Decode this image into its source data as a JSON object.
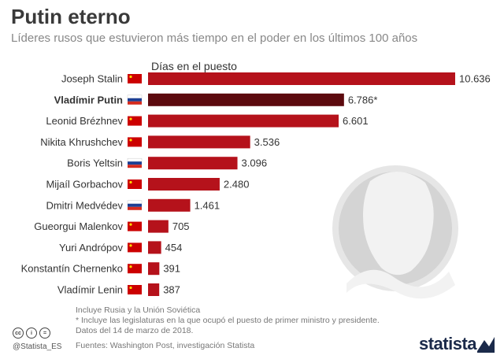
{
  "header": {
    "title": "Putin eterno",
    "subtitle": "Líderes rusos que estuvieron más tiempo en el poder en los últimos 100 años"
  },
  "chart_data": {
    "type": "bar",
    "orientation": "horizontal",
    "axis_title": "Días en el puesto",
    "categories": [
      "Joseph Stalin",
      "Vladímir Putin",
      "Leonid Brézhnev",
      "Nikita Khrushchev",
      "Boris Yeltsin",
      "Mijaíl Gorbachov",
      "Dmitri Medvédev",
      "Gueorgui Malenkov",
      "Yuri Andrópov",
      "Konstantín Chernenko",
      "Vladímir Lenin"
    ],
    "values": [
      10636,
      6786,
      6601,
      3536,
      3096,
      2480,
      1461,
      705,
      454,
      391,
      387
    ],
    "value_labels": [
      "10.636",
      "6.786*",
      "6.601",
      "3.536",
      "3.096",
      "2.480",
      "1.461",
      "705",
      "454",
      "391",
      "387"
    ],
    "flags": [
      "ussr",
      "russia",
      "ussr",
      "ussr",
      "russia",
      "ussr",
      "russia",
      "ussr",
      "ussr",
      "ussr",
      "ussr"
    ],
    "highlight": "Vladímir Putin",
    "xlim": [
      0,
      10636
    ],
    "colors": {
      "bar": "#b5121b",
      "highlight": "#5c0a0e",
      "ussr_flag": "#cc0000",
      "ussr_star": "#ffd700"
    }
  },
  "footer": {
    "notes": [
      "Incluye Rusia y la Unión Soviética",
      "* Incluye las legislaturas en la que ocupó el puesto de primer ministro y presidente.",
      "  Datos del 14 de marzo de 2018."
    ],
    "source": "Fuentes: Washington Post, investigación Statista",
    "handle": "@Statista_ES",
    "brand": "statista",
    "cc_icons": [
      "cc",
      "i",
      "="
    ]
  }
}
